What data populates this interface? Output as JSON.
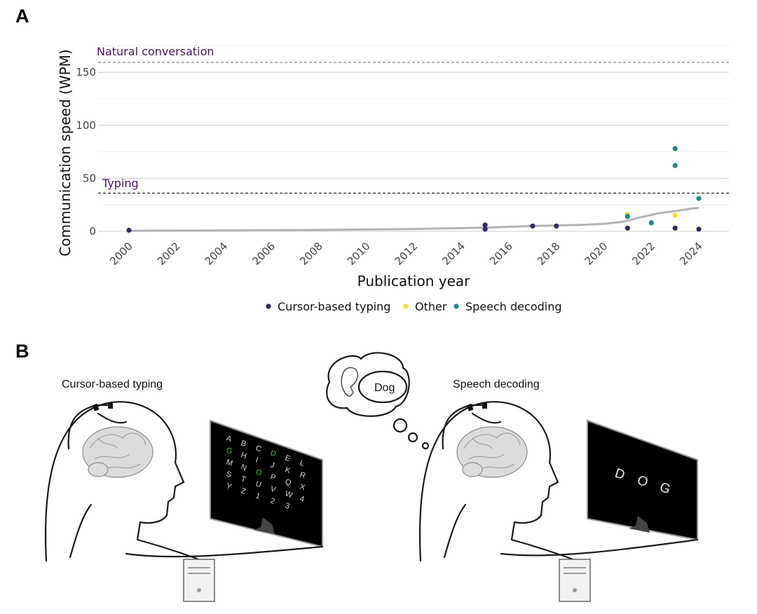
{
  "panels": {
    "a_letter": "A",
    "b_letter": "B"
  },
  "chart_data": {
    "type": "scatter",
    "title": "",
    "xlabel": "Publication year",
    "ylabel": "Communication speed (WPM)",
    "xlim": [
      2000,
      2024
    ],
    "ylim": [
      0,
      160
    ],
    "x_ticks": [
      2000,
      2002,
      2004,
      2006,
      2008,
      2010,
      2012,
      2014,
      2016,
      2018,
      2020,
      2022,
      2024
    ],
    "y_ticks": [
      0,
      50,
      100,
      150
    ],
    "grid": true,
    "legend_position": "bottom",
    "reference_lines": [
      {
        "label": "Natural conversation",
        "value": 160
      },
      {
        "label": "Typing",
        "value": 36
      }
    ],
    "series": [
      {
        "name": "Cursor-based typing",
        "color": "#2d2a6e",
        "points": [
          [
            2000,
            1
          ],
          [
            2015,
            6
          ],
          [
            2015,
            2
          ],
          [
            2017,
            5
          ],
          [
            2018,
            5
          ],
          [
            2021,
            3
          ],
          [
            2023,
            3
          ],
          [
            2024,
            2
          ]
        ]
      },
      {
        "name": "Other",
        "color": "#f5dc32",
        "points": [
          [
            2021,
            16
          ],
          [
            2023,
            15
          ]
        ]
      },
      {
        "name": "Speech decoding",
        "color": "#1a8a85",
        "points": [
          [
            2021,
            14
          ],
          [
            2022,
            8
          ],
          [
            2023,
            78
          ],
          [
            2023,
            62
          ],
          [
            2024,
            31
          ]
        ]
      }
    ],
    "trend": {
      "color": "#b3b3b3",
      "points": [
        [
          2000,
          0.5
        ],
        [
          2004,
          0.8
        ],
        [
          2008,
          1.3
        ],
        [
          2012,
          2.2
        ],
        [
          2015,
          3.5
        ],
        [
          2017,
          5
        ],
        [
          2019,
          6
        ],
        [
          2020,
          7
        ],
        [
          2020.8,
          9
        ],
        [
          2021.5,
          13
        ],
        [
          2022.3,
          17
        ],
        [
          2023,
          19
        ],
        [
          2023.7,
          21.5
        ],
        [
          2024,
          22
        ]
      ]
    }
  },
  "illustration": {
    "left_caption": "Cursor-based typing",
    "right_caption": "Speech decoding",
    "thought_word": "Dog",
    "grid_letters": [
      [
        "A",
        "B",
        "C",
        "D",
        "E",
        "L"
      ],
      [
        "G",
        "H",
        "I",
        "J",
        "K",
        "R"
      ],
      [
        "M",
        "N",
        "O",
        "P",
        "Q",
        "X"
      ],
      [
        "S",
        "T",
        "U",
        "V",
        "W",
        "4"
      ],
      [
        "Y",
        "Z",
        "1",
        "2",
        "3",
        ""
      ]
    ],
    "highlighted_letters": [
      "D",
      "O",
      "G"
    ],
    "decoded_letters": [
      "D",
      "O",
      "G"
    ],
    "highlight_color": "#35c93a",
    "screen_color": "#000000"
  }
}
